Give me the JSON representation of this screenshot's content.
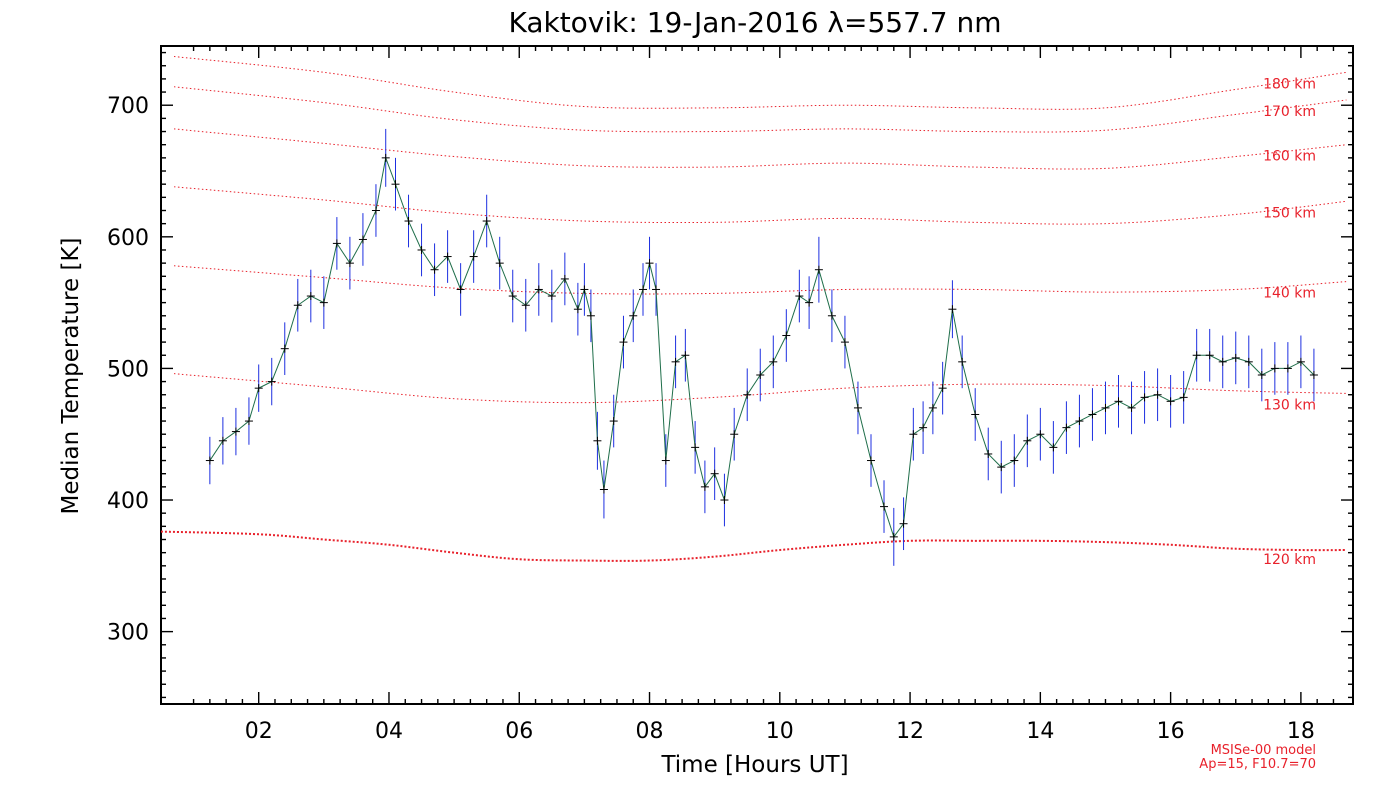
{
  "chart_data": {
    "type": "line",
    "title": "Kaktovik: 19-Jan-2016 λ=557.7 nm",
    "xlabel": "Time [Hours UT]",
    "ylabel": "Median Temperature [K]",
    "xlim": [
      0.5,
      18.8
    ],
    "ylim": [
      245,
      745
    ],
    "x_tick_values": [
      2,
      4,
      6,
      8,
      10,
      12,
      14,
      16,
      18
    ],
    "x_tick_labels": [
      "02",
      "04",
      "06",
      "08",
      "10",
      "12",
      "14",
      "16",
      "18"
    ],
    "y_tick_values": [
      300,
      400,
      500,
      600,
      700
    ],
    "y_tick_labels": [
      "300",
      "400",
      "500",
      "600",
      "700"
    ],
    "grid": false,
    "colors": {
      "model": "#e8212b",
      "error_bars": "#1d2fe0",
      "line": "#1f6e4a",
      "markers": "#000000",
      "frame": "#000000"
    },
    "annotations": [
      "MSISe-00 model",
      "Ap=15, F10.7=70"
    ],
    "model_series": [
      {
        "label": "180 km",
        "x": [
          0.7,
          3,
          5,
          7,
          9,
          11,
          13,
          15,
          17,
          18.7
        ],
        "y": [
          737,
          725,
          710,
          699,
          698,
          700,
          698,
          698,
          712,
          725
        ]
      },
      {
        "label": "170 km",
        "x": [
          0.7,
          3,
          5,
          7,
          9,
          11,
          13,
          15,
          17,
          18.7
        ],
        "y": [
          714,
          702,
          689,
          681,
          680,
          682,
          680,
          681,
          693,
          704
        ]
      },
      {
        "label": "160 km",
        "x": [
          0.7,
          3,
          5,
          7,
          9,
          11,
          13,
          15,
          17,
          18.7
        ],
        "y": [
          682,
          671,
          661,
          654,
          653,
          656,
          653,
          652,
          661,
          670
        ]
      },
      {
        "label": "150 km",
        "x": [
          0.7,
          3,
          5,
          7,
          9,
          11,
          13,
          15,
          17,
          18.7
        ],
        "y": [
          638,
          628,
          618,
          612,
          611,
          614,
          611,
          610,
          617,
          627
        ]
      },
      {
        "label": "140 km",
        "x": [
          0.7,
          3,
          5,
          7,
          9,
          11,
          13,
          15,
          17,
          18.7
        ],
        "y": [
          578,
          569,
          561,
          557,
          557,
          560,
          560,
          558,
          560,
          566
        ]
      },
      {
        "label": "130 km",
        "x": [
          0.7,
          3,
          5,
          7,
          9,
          11,
          13,
          15,
          17,
          18.7
        ],
        "y": [
          496,
          486,
          477,
          474,
          478,
          485,
          488,
          487,
          483,
          481
        ]
      },
      {
        "label": "120 km",
        "x": [
          0.5,
          2,
          3,
          4,
          5,
          6,
          7,
          8,
          9,
          10,
          11,
          12,
          13,
          14,
          15,
          16,
          17,
          18,
          18.7
        ],
        "y": [
          376,
          374,
          370,
          366,
          360,
          355,
          354,
          354,
          357,
          362,
          366,
          369,
          369,
          369,
          368,
          366,
          363,
          362,
          362
        ]
      }
    ],
    "series": [
      {
        "x": [
          1.25,
          1.45,
          1.65,
          1.85,
          2.0,
          2.2,
          2.4,
          2.6,
          2.8,
          3.0,
          3.2,
          3.4,
          3.6,
          3.8,
          3.95,
          4.1,
          4.3,
          4.5,
          4.7,
          4.9,
          5.1,
          5.3,
          5.5,
          5.7,
          5.9,
          6.1,
          6.3,
          6.5,
          6.7,
          6.9,
          7.0,
          7.1,
          7.2,
          7.3,
          7.45,
          7.6,
          7.75,
          7.9,
          8.0,
          8.1,
          8.25,
          8.4,
          8.55,
          8.7,
          8.85,
          9.0,
          9.15,
          9.3,
          9.5,
          9.7,
          9.9,
          10.1,
          10.3,
          10.45,
          10.6,
          10.8,
          11.0,
          11.2,
          11.4,
          11.6,
          11.75,
          11.9,
          12.05,
          12.2,
          12.35,
          12.5,
          12.65,
          12.8,
          13.0,
          13.2,
          13.4,
          13.6,
          13.8,
          14.0,
          14.2,
          14.4,
          14.6,
          14.8,
          15.0,
          15.2,
          15.4,
          15.6,
          15.8,
          16.0,
          16.2,
          16.4,
          16.6,
          16.8,
          17.0,
          17.2,
          17.4,
          17.6,
          17.8,
          18.0,
          18.2
        ],
        "y": [
          430,
          445,
          452,
          460,
          485,
          490,
          515,
          548,
          555,
          550,
          595,
          580,
          598,
          620,
          660,
          640,
          612,
          590,
          575,
          585,
          560,
          585,
          612,
          580,
          555,
          548,
          560,
          555,
          568,
          545,
          560,
          540,
          445,
          408,
          460,
          520,
          540,
          560,
          580,
          560,
          430,
          505,
          510,
          440,
          410,
          420,
          400,
          450,
          480,
          495,
          505,
          525,
          555,
          550,
          575,
          540,
          520,
          470,
          430,
          395,
          372,
          382,
          450,
          455,
          470,
          485,
          545,
          505,
          465,
          435,
          425,
          430,
          445,
          450,
          440,
          455,
          460,
          465,
          470,
          475,
          470,
          478,
          480,
          475,
          478,
          510,
          510,
          505,
          508,
          505,
          495,
          500,
          500,
          505,
          495
        ],
        "errors": [
          18,
          18,
          18,
          18,
          18,
          18,
          20,
          20,
          20,
          20,
          20,
          20,
          20,
          20,
          22,
          20,
          20,
          20,
          20,
          20,
          20,
          20,
          20,
          20,
          20,
          20,
          20,
          20,
          20,
          20,
          20,
          20,
          22,
          22,
          20,
          20,
          20,
          20,
          20,
          20,
          20,
          20,
          20,
          20,
          20,
          20,
          20,
          20,
          20,
          20,
          20,
          20,
          20,
          20,
          25,
          20,
          20,
          20,
          20,
          20,
          22,
          20,
          20,
          20,
          20,
          20,
          22,
          20,
          20,
          20,
          20,
          20,
          20,
          20,
          20,
          20,
          20,
          20,
          20,
          20,
          20,
          20,
          20,
          20,
          20,
          20,
          20,
          20,
          20,
          20,
          20,
          20,
          20,
          20,
          20
        ]
      }
    ]
  }
}
